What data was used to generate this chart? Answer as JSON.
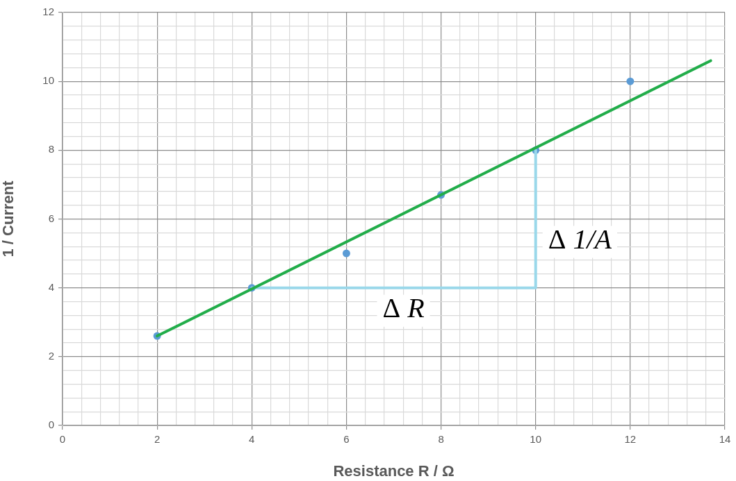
{
  "chart_data": {
    "type": "scatter",
    "xlabel": "Resistance R / Ω",
    "ylabel": "1 / Current",
    "xlim": [
      0,
      14
    ],
    "xticks": [
      0,
      {
        "value": 0.4,
        "label": null
      },
      {
        "value": 0.8,
        "label": null
      },
      {
        "value": 1.2,
        "label": null
      },
      {
        "value": 1.6,
        "label": null
      },
      2,
      {
        "value": 2.4,
        "label": null
      },
      {
        "value": 2.8,
        "label": null
      },
      {
        "value": 3.2,
        "label": null
      },
      {
        "value": 3.6,
        "label": null
      },
      4,
      {
        "value": 4.4,
        "label": null
      },
      {
        "value": 4.8,
        "label": null
      },
      {
        "value": 5.2,
        "label": null
      },
      {
        "value": 5.6,
        "label": null
      },
      6,
      {
        "value": 6.4,
        "label": null
      },
      {
        "value": 6.8,
        "label": null
      },
      {
        "value": 7.2,
        "label": null
      },
      {
        "value": 7.6,
        "label": null
      },
      8,
      {
        "value": 8.4,
        "label": null
      },
      {
        "value": 8.8,
        "label": null
      },
      {
        "value": 9.2,
        "label": null
      },
      {
        "value": 9.6,
        "label": null
      },
      10,
      {
        "value": 10.4,
        "label": null
      },
      {
        "value": 10.8,
        "label": null
      },
      {
        "value": 11.2,
        "label": null
      },
      {
        "value": 11.6,
        "label": null
      },
      12,
      {
        "value": 12.4,
        "label": null
      },
      {
        "value": 12.8,
        "label": null
      },
      {
        "value": 13.2,
        "label": null
      },
      {
        "value": 13.6,
        "label": null
      },
      14
    ],
    "ylim": [
      0,
      12
    ],
    "yticks": [
      0,
      {
        "value": 0.4,
        "label": null
      },
      {
        "value": 0.8,
        "label": null
      },
      {
        "value": 1.2,
        "label": null
      },
      {
        "value": 1.6,
        "label": null
      },
      2,
      {
        "value": 2.4,
        "label": null
      },
      {
        "value": 2.8,
        "label": null
      },
      {
        "value": 3.2,
        "label": null
      },
      {
        "value": 3.6,
        "label": null
      },
      4,
      {
        "value": 4.4,
        "label": null
      },
      {
        "value": 4.8,
        "label": null
      },
      {
        "value": 5.2,
        "label": null
      },
      {
        "value": 5.6,
        "label": null
      },
      6,
      {
        "value": 6.4,
        "label": null
      },
      {
        "value": 6.8,
        "label": null
      },
      {
        "value": 7.2,
        "label": null
      },
      {
        "value": 7.6,
        "label": null
      },
      8,
      {
        "value": 8.4,
        "label": null
      },
      {
        "value": 8.8,
        "label": null
      },
      {
        "value": 9.2,
        "label": null
      },
      {
        "value": 9.6,
        "label": null
      },
      10,
      {
        "value": 10.4,
        "label": null
      },
      {
        "value": 10.8,
        "label": null
      },
      {
        "value": 11.2,
        "label": null
      },
      {
        "value": 11.6,
        "label": null
      },
      12
    ],
    "grid": true,
    "legend": false,
    "marker": "circle",
    "series": [
      {
        "color": "#5b9bd5",
        "x": [
          2,
          4,
          6,
          8,
          10,
          12
        ],
        "values": [
          2.6,
          4,
          5,
          6.7,
          8,
          10
        ]
      },
      {
        "type": "line",
        "marker": "none",
        "color": "#9ad8ea",
        "x": [
          4,
          10,
          10
        ],
        "values": [
          4,
          4,
          8
        ]
      },
      {
        "type": "line",
        "marker": "none",
        "color": "#22ad4a",
        "x": [
          2,
          13.7
        ],
        "values": [
          2.6,
          10.6
        ]
      }
    ],
    "annotations": [
      {
        "text": "Δ R",
        "x": 6.5,
        "y": 4
      },
      {
        "text": "Δ 1/A",
        "x": 10,
        "y": 6
      }
    ]
  }
}
